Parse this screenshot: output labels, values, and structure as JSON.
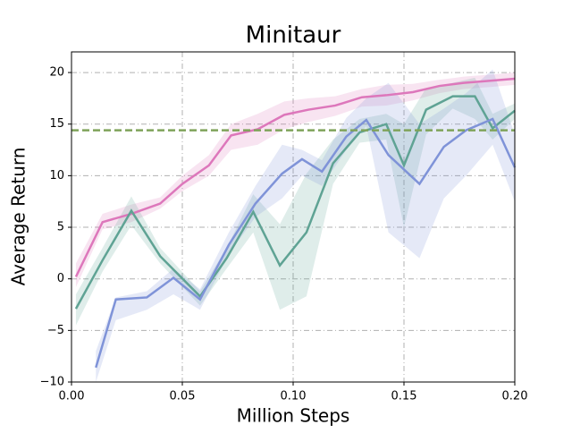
{
  "chart_data": {
    "type": "line",
    "title": "Minitaur",
    "x_label": "Million Steps",
    "y_label": "Average Return",
    "xlim": [
      0,
      0.2
    ],
    "ylim": [
      -10,
      22
    ],
    "xticks": [
      {
        "value": 0,
        "label": "0.00"
      },
      {
        "value": 0.05,
        "label": "0.05"
      },
      {
        "value": 0.1,
        "label": "0.10"
      },
      {
        "value": 0.15,
        "label": "0.15"
      },
      {
        "value": 0.2,
        "label": "0.20"
      }
    ],
    "yticks": [
      {
        "value": -10,
        "label": "−10"
      },
      {
        "value": -5,
        "label": "−5"
      },
      0,
      5,
      10,
      15,
      20
    ],
    "grid": true,
    "hlines": [
      {
        "value": 14.4,
        "color": "#7fa35a"
      }
    ],
    "series": [
      {
        "color": "#dd77bb",
        "x": [
          0.002,
          0.014,
          0.027,
          0.04,
          0.05,
          0.062,
          0.072,
          0.084,
          0.096,
          0.107,
          0.119,
          0.131,
          0.142,
          0.154,
          0.166,
          0.177,
          0.189,
          0.2
        ],
        "values": [
          0.2,
          5.5,
          6.3,
          7.3,
          9.2,
          11,
          13.9,
          14.5,
          15.9,
          16.4,
          16.8,
          17.6,
          17.8,
          18.1,
          18.7,
          19.0,
          19.2,
          19.4
        ],
        "lower": [
          -0.8,
          4.8,
          5.5,
          6.8,
          8.5,
          10,
          12.5,
          13,
          14.5,
          15.2,
          15.8,
          16.7,
          16.8,
          17.3,
          18,
          18.4,
          18.6,
          18.8
        ],
        "upper": [
          1.5,
          6.3,
          7.2,
          7.9,
          10,
          12,
          15,
          16,
          17.2,
          17.5,
          17.7,
          18.4,
          18.8,
          18.9,
          19.3,
          19.6,
          19.8,
          20
        ]
      },
      {
        "color": "#5fa394",
        "x": [
          0.002,
          0.014,
          0.027,
          0.04,
          0.058,
          0.07,
          0.082,
          0.094,
          0.106,
          0.118,
          0.13,
          0.142,
          0.15,
          0.16,
          0.172,
          0.182,
          0.19,
          0.2
        ],
        "values": [
          -2.9,
          1.8,
          6.6,
          2.2,
          -1.7,
          2,
          6.5,
          1.3,
          4.5,
          11.2,
          14.2,
          15,
          11,
          16.4,
          17.7,
          17.7,
          14.6,
          16.3
        ],
        "lower": [
          -4.5,
          0.7,
          5.2,
          1.5,
          -2.6,
          1.0,
          4.5,
          -3,
          -1.7,
          9.2,
          13.2,
          13.5,
          5,
          14,
          16.5,
          15.5,
          13.5,
          15.5
        ],
        "upper": [
          -1.5,
          3,
          8,
          3,
          -1.2,
          3,
          8.2,
          5.3,
          10.2,
          13.5,
          15.5,
          16,
          15,
          18.5,
          19,
          19.5,
          16,
          17
        ]
      },
      {
        "color": "#7f93d8",
        "x": [
          0.011,
          0.02,
          0.034,
          0.046,
          0.058,
          0.071,
          0.083,
          0.095,
          0.104,
          0.113,
          0.124,
          0.133,
          0.143,
          0.157,
          0.168,
          0.178,
          0.19,
          0.2
        ],
        "values": [
          -8.6,
          -2,
          -1.8,
          0.1,
          -2,
          3.3,
          7.3,
          10.2,
          11.6,
          10.4,
          13.8,
          15.4,
          12,
          9.2,
          12.8,
          14.4,
          15.5,
          10.8
        ],
        "lower": [
          -10,
          -4,
          -3,
          -1.5,
          -3,
          2.4,
          6,
          7.8,
          10,
          9,
          12.5,
          14.8,
          4.5,
          2,
          7.8,
          10,
          13,
          7.5
        ],
        "upper": [
          -7,
          -1.8,
          -1.2,
          1,
          -1,
          4.5,
          9,
          13,
          12.5,
          11.5,
          15.6,
          17.5,
          19,
          15,
          16.5,
          18,
          20.3,
          14
        ]
      }
    ]
  }
}
